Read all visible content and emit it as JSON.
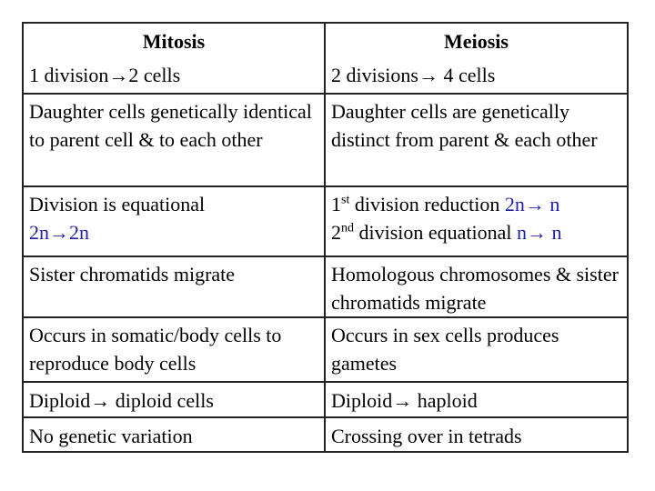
{
  "table": {
    "header": [
      "Mitosis",
      "Meiosis"
    ],
    "rows": [
      [
        [
          [
            {
              "text": "1 division→2 cells"
            }
          ]
        ],
        [
          [
            {
              "text": "2 divisions→ 4 cells"
            }
          ]
        ]
      ],
      [
        [
          [
            {
              "text": "Daughter cells genetically identical to parent cell & to each other"
            }
          ]
        ],
        [
          [
            {
              "text": "Daughter cells are genetically distinct from parent & each other"
            }
          ]
        ]
      ],
      [
        [
          [
            {
              "text": "Division is equational"
            }
          ],
          [
            {
              "text": "2n→2n",
              "color": "#1f1fa8"
            }
          ]
        ],
        [
          [
            {
              "text": "1"
            },
            {
              "text": "st",
              "sup": true
            },
            {
              "text": " division reduction "
            },
            {
              "text": "2n→ n",
              "color": "#1f1fa8"
            }
          ],
          [
            {
              "text": "2"
            },
            {
              "text": "nd",
              "sup": true
            },
            {
              "text": " division equational "
            },
            {
              "text": "n→ n",
              "color": "#1f1fa8"
            }
          ]
        ]
      ],
      [
        [
          [
            {
              "text": "Sister chromatids migrate"
            }
          ]
        ],
        [
          [
            {
              "text": "Homologous chromosomes & sister chromatids migrate"
            }
          ]
        ]
      ],
      [
        [
          [
            {
              "text": "Occurs in somatic/body cells to reproduce body cells"
            }
          ]
        ],
        [
          [
            {
              "text": "Occurs in sex cells produces gametes"
            }
          ]
        ]
      ],
      [
        [
          [
            {
              "text": "Diploid→ diploid cells"
            }
          ]
        ],
        [
          [
            {
              "text": "Diploid→ haploid"
            }
          ]
        ]
      ],
      [
        [
          [
            {
              "text": "No genetic variation"
            }
          ]
        ],
        [
          [
            {
              "text": "Crossing over in tetrads"
            }
          ]
        ]
      ]
    ]
  }
}
